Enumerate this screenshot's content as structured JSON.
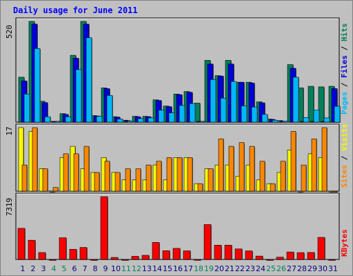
{
  "title": "Daily usage for June 2011",
  "colors": {
    "hits": "#00805c",
    "files": "#0000d8",
    "pages": "#00b8f8",
    "visits": "#f8f800",
    "sites": "#f88800",
    "kbytes": "#f80000",
    "weekend_label": "#00805c",
    "weekday_label": "#000080",
    "panel_bg": "#c0c0c0",
    "frame_border": "#808080"
  },
  "chart_data": [
    {
      "type": "bar",
      "panel": "hits-files-pages",
      "y_max_label": "520",
      "ylim": [
        0,
        520
      ],
      "right_labels": [
        "Pages",
        "Files",
        "Hits"
      ],
      "x": [
        "1",
        "2",
        "3",
        "4",
        "5",
        "6",
        "7",
        "8",
        "9",
        "10",
        "11",
        "12",
        "13",
        "14",
        "15",
        "16",
        "17",
        "18",
        "19",
        "20",
        "21",
        "22",
        "23",
        "24",
        "25",
        "26",
        "27",
        "28",
        "29",
        "30",
        "31"
      ],
      "series": [
        {
          "name": "Hits",
          "values": [
            232,
            520,
            108,
            4,
            44,
            345,
            520,
            34,
            177,
            28,
            10,
            30,
            30,
            115,
            83,
            145,
            158,
            98,
            319,
            240,
            319,
            206,
            206,
            105,
            16,
            8,
            297,
            177,
            185,
            182,
            185
          ]
        },
        {
          "name": "Files",
          "values": [
            213,
            506,
            101,
            4,
            40,
            330,
            506,
            32,
            173,
            26,
            8,
            28,
            28,
            112,
            80,
            142,
            154,
            4,
            300,
            238,
            300,
            206,
            202,
            100,
            14,
            6,
            278,
            4,
            4,
            4,
            173
          ]
        },
        {
          "name": "Pages",
          "values": [
            145,
            380,
            28,
            4,
            28,
            271,
            436,
            30,
            138,
            16,
            6,
            18,
            22,
            62,
            48,
            86,
            96,
            4,
            220,
            124,
            210,
            84,
            78,
            40,
            10,
            6,
            232,
            24,
            62,
            22,
            82
          ]
        }
      ]
    },
    {
      "type": "bar",
      "panel": "visits-sites",
      "y_max_label": "17",
      "ylim": [
        0,
        17
      ],
      "right_labels": [
        "Sites",
        "Visits"
      ],
      "x": [
        "1",
        "2",
        "3",
        "4",
        "5",
        "6",
        "7",
        "8",
        "9",
        "10",
        "11",
        "12",
        "13",
        "14",
        "15",
        "16",
        "17",
        "18",
        "19",
        "20",
        "21",
        "22",
        "23",
        "24",
        "25",
        "26",
        "27",
        "28",
        "29",
        "30",
        "31"
      ],
      "series": [
        {
          "name": "Visits",
          "values": [
            17,
            16,
            6,
            0,
            9,
            12,
            6,
            5,
            9,
            5,
            3,
            3,
            3,
            7,
            3,
            9,
            9,
            2,
            6,
            7,
            7,
            4,
            7,
            3,
            2,
            5,
            11,
            0,
            10,
            9,
            0
          ]
        },
        {
          "name": "Sites",
          "values": [
            7,
            17,
            6,
            1,
            10,
            10,
            12,
            5,
            8,
            5,
            6,
            6,
            7,
            8,
            9,
            9,
            9,
            2,
            6,
            14,
            12,
            13,
            12,
            8,
            2,
            8,
            16,
            7,
            14,
            17,
            0
          ]
        }
      ]
    },
    {
      "type": "bar",
      "panel": "kbytes",
      "y_max_label": "7319",
      "ylim": [
        0,
        7319
      ],
      "right_labels": [
        "KBytes"
      ],
      "x": [
        "1",
        "2",
        "3",
        "4",
        "5",
        "6",
        "7",
        "8",
        "9",
        "10",
        "11",
        "12",
        "13",
        "14",
        "15",
        "16",
        "17",
        "18",
        "19",
        "20",
        "21",
        "22",
        "23",
        "24",
        "25",
        "26",
        "27",
        "28",
        "29",
        "30",
        "31"
      ],
      "series": [
        {
          "name": "KBytes",
          "values": [
            3628,
            2240,
            804,
            0,
            2531,
            1185,
            1400,
            0,
            7319,
            238,
            0,
            366,
            484,
            1987,
            1022,
            1294,
            1004,
            4,
            4067,
            1666,
            1666,
            1227,
            998,
            393,
            0,
            266,
            868,
            795,
            819,
            2574,
            0
          ]
        }
      ]
    }
  ],
  "x_labels": [
    {
      "label": "1",
      "weekend": false
    },
    {
      "label": "2",
      "weekend": false
    },
    {
      "label": "3",
      "weekend": false
    },
    {
      "label": "4",
      "weekend": true
    },
    {
      "label": "5",
      "weekend": true
    },
    {
      "label": "6",
      "weekend": false
    },
    {
      "label": "7",
      "weekend": false
    },
    {
      "label": "8",
      "weekend": false
    },
    {
      "label": "9",
      "weekend": false
    },
    {
      "label": "10",
      "weekend": false
    },
    {
      "label": "11",
      "weekend": true
    },
    {
      "label": "12",
      "weekend": true
    },
    {
      "label": "13",
      "weekend": false
    },
    {
      "label": "14",
      "weekend": false
    },
    {
      "label": "15",
      "weekend": false
    },
    {
      "label": "16",
      "weekend": false
    },
    {
      "label": "17",
      "weekend": false
    },
    {
      "label": "18",
      "weekend": true
    },
    {
      "label": "19",
      "weekend": true
    },
    {
      "label": "20",
      "weekend": false
    },
    {
      "label": "21",
      "weekend": false
    },
    {
      "label": "22",
      "weekend": false
    },
    {
      "label": "23",
      "weekend": false
    },
    {
      "label": "24",
      "weekend": false
    },
    {
      "label": "25",
      "weekend": true
    },
    {
      "label": "26",
      "weekend": true
    },
    {
      "label": "27",
      "weekend": false
    },
    {
      "label": "28",
      "weekend": false
    },
    {
      "label": "29",
      "weekend": false
    },
    {
      "label": "30",
      "weekend": false
    },
    {
      "label": "31",
      "weekend": false
    }
  ]
}
